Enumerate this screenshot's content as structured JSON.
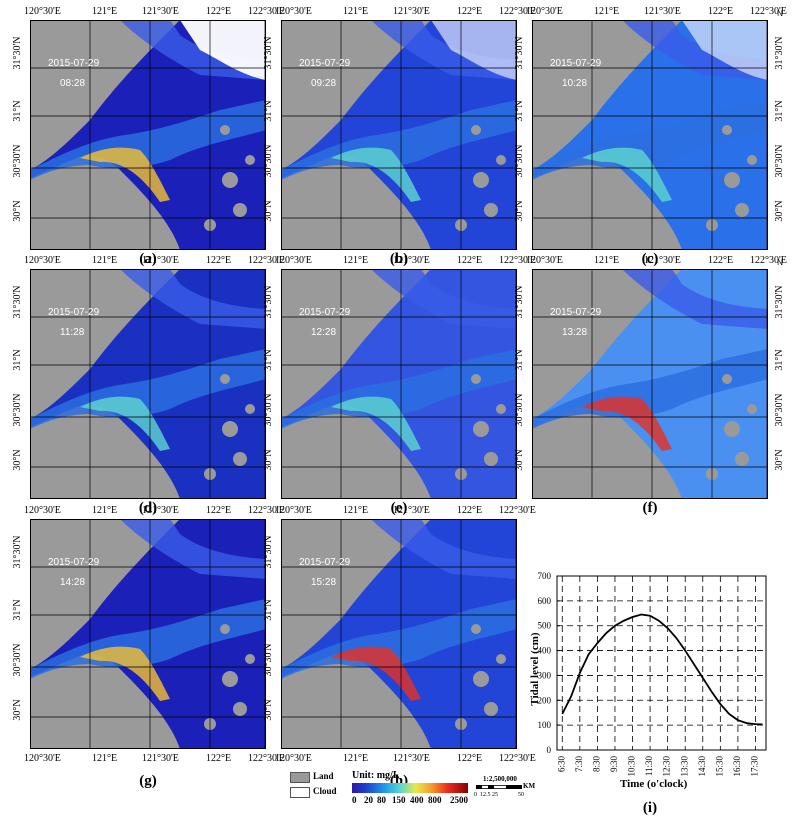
{
  "lon_labels": [
    "120°30'E",
    "121°E",
    "121°30'E",
    "122°E",
    "122°30'E"
  ],
  "lat_labels": [
    "31°30'N",
    "31°N",
    "30°30'N",
    "30°N"
  ],
  "panels": [
    {
      "label": "(a)",
      "date": "2015-07-29",
      "time": "08:28"
    },
    {
      "label": "(b)",
      "date": "2015-07-29",
      "time": "09:28"
    },
    {
      "label": "(c)",
      "date": "2015-07-29",
      "time": "10:28"
    },
    {
      "label": "(d)",
      "date": "2015-07-29",
      "time": "11:28"
    },
    {
      "label": "(e)",
      "date": "2015-07-29",
      "time": "12:28"
    },
    {
      "label": "(f)",
      "date": "2015-07-29",
      "time": "13:28"
    },
    {
      "label": "(g)",
      "date": "2015-07-29",
      "time": "14:28"
    },
    {
      "label": "(h)",
      "date": "2015-07-29",
      "time": "15:28"
    }
  ],
  "legend": {
    "land": "Land",
    "cloud": "Cloud",
    "unit_title": "Unit:  mg/L",
    "ticks": [
      "0",
      "20",
      "80",
      "150",
      "400",
      "800",
      "2500"
    ],
    "scale_ratio": "1:2,500,000",
    "scale_unit": "KM",
    "scale_ticks": [
      "0",
      "12.5",
      "25",
      "50"
    ],
    "north": "N",
    "colors": {
      "land": "#999999",
      "cloud": "#ffffff",
      "low": "#1a1aa8",
      "high": "#8b0000"
    }
  },
  "chart_data": {
    "type": "line",
    "panel_label": "(i)",
    "xlabel": "Time (o'clock)",
    "ylabel": "Tidal   level (cm)",
    "ylim": [
      0,
      700
    ],
    "yticks": [
      "0",
      "100",
      "200",
      "300",
      "400",
      "500",
      "600",
      "700"
    ],
    "xticks": [
      "6:30",
      "7:30",
      "8:30",
      "9:30",
      "10:30",
      "11:30",
      "12:30",
      "13:30",
      "14:30",
      "15:30",
      "16:30",
      "17:30"
    ],
    "x": [
      6.5,
      7.0,
      7.5,
      8.0,
      8.5,
      9.0,
      9.5,
      10.0,
      10.5,
      11.0,
      11.5,
      12.0,
      12.5,
      13.0,
      13.5,
      14.0,
      14.5,
      15.0,
      15.5,
      16.0,
      16.5,
      17.0,
      17.5,
      17.9
    ],
    "series": [
      {
        "values": [
          145,
          215,
          310,
          385,
          430,
          470,
          500,
          520,
          535,
          545,
          540,
          520,
          490,
          450,
          400,
          345,
          290,
          235,
          185,
          145,
          120,
          108,
          104,
          103
        ]
      }
    ],
    "grid": true
  }
}
